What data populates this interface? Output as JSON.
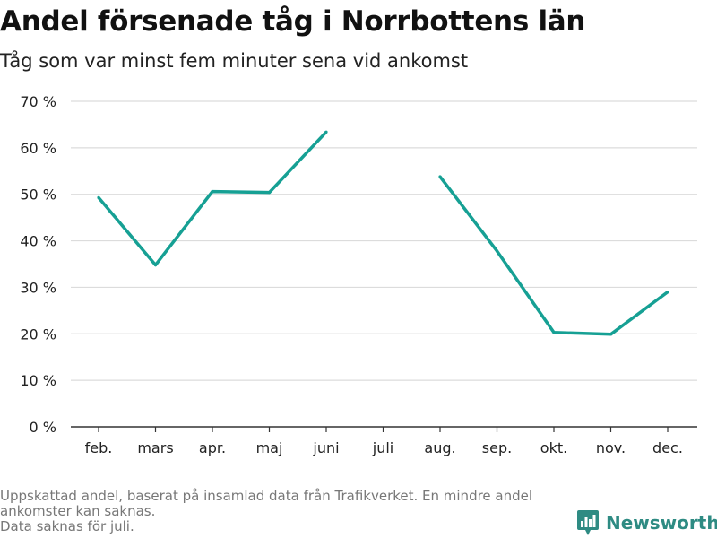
{
  "title": "Andel försenade tåg i Norrbottens län",
  "subtitle": "Tåg som var minst fem minuter sena vid ankomst",
  "footnote": {
    "lines": [
      "Uppskattad andel, baserat på insamlad data från Trafikverket. En mindre andel",
      "ankomster kan saknas.",
      "Data saknas för juli."
    ]
  },
  "brand": {
    "name": "Newsworthy",
    "icon": "newsworthy-logo-icon"
  },
  "colors": {
    "line": "#16a094",
    "grid": "#dcdcdc",
    "axis": "#333333",
    "text": "#222222"
  },
  "chart_data": {
    "type": "line",
    "categories": [
      "feb.",
      "mars",
      "apr.",
      "maj",
      "juni",
      "juli",
      "aug.",
      "sep.",
      "okt.",
      "nov.",
      "dec."
    ],
    "series": [
      {
        "values": [
          49.3,
          34.8,
          50.6,
          50.4,
          63.4,
          null,
          53.8,
          37.8,
          20.3,
          19.9,
          29.0
        ]
      }
    ],
    "ylim": [
      0,
      70
    ],
    "yticks": [
      0,
      10,
      20,
      30,
      40,
      50,
      60,
      70
    ],
    "ytick_suffix": " %",
    "grid": true
  }
}
